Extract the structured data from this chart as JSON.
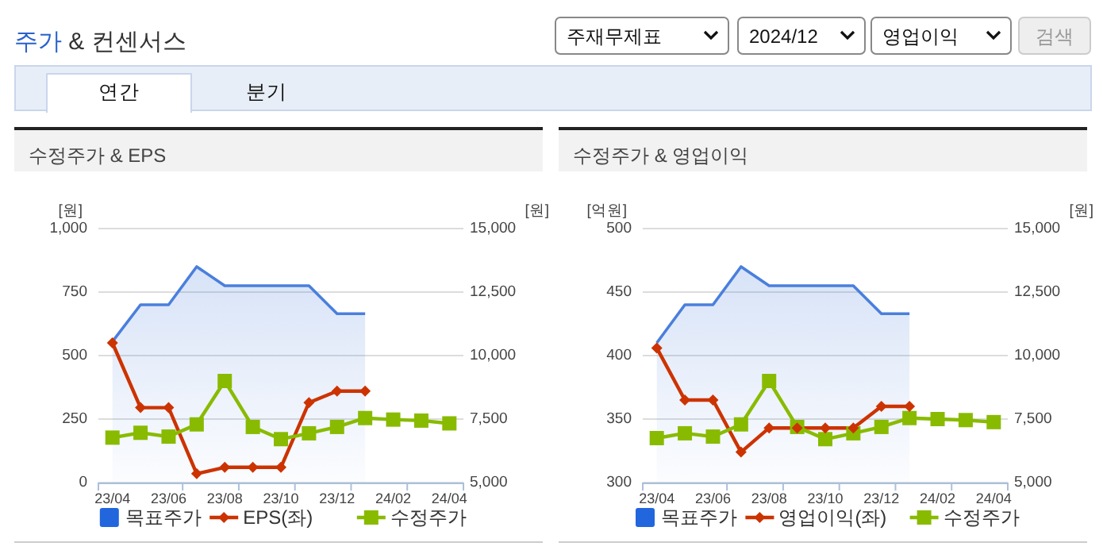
{
  "chart_data": [
    {
      "type": "other",
      "title": "주가 & 컨센서스",
      "annotations": [
        "주재무제표",
        "2024/12",
        "영업이익",
        "검색",
        "연간",
        "분기"
      ]
    },
    {
      "type": "line",
      "title": "수정주가 & EPS",
      "ylabel": "[원]",
      "y2label": "[원]",
      "legend": "bottom",
      "grid": "y",
      "categories": [
        "23/04",
        null,
        "23/06",
        null,
        "23/08",
        null,
        "23/10",
        null,
        "23/12",
        null,
        "24/02",
        null,
        "24/04"
      ],
      "ylim": [
        0,
        1000
      ],
      "yticks": [
        0,
        250,
        500,
        750,
        {
          "value": 1000,
          "label": "1,000"
        }
      ],
      "y2lim": [
        5000,
        15000
      ],
      "y2ticks": [
        {
          "value": 5000,
          "label": "5,000"
        },
        {
          "value": 7500,
          "label": "7,500"
        },
        {
          "value": 10000,
          "label": "10,000"
        },
        {
          "value": 12500,
          "label": "12,500"
        },
        {
          "value": 15000,
          "label": "15,000"
        }
      ],
      "series": [
        {
          "name": "목표주가",
          "type": "area",
          "axis": "y2",
          "color": "#4a7fdc",
          "marker": "none",
          "values": [
            10550,
            12000,
            12000,
            13500,
            12750,
            12750,
            12750,
            12750,
            11650,
            11650,
            null,
            null,
            null
          ]
        },
        {
          "name": "EPS(좌)",
          "type": "line",
          "color": "#cc3300",
          "marker": "diamond",
          "values": [
            550,
            295,
            295,
            35,
            60,
            60,
            60,
            315,
            360,
            360,
            null,
            null,
            null
          ]
        },
        {
          "name": "수정주가",
          "type": "line",
          "axis": "y2",
          "color": "#88bb00",
          "marker": "square",
          "values": [
            6770,
            6960,
            6810,
            7290,
            9000,
            7190,
            6710,
            6940,
            7190,
            7540,
            7480,
            7440,
            7330
          ]
        }
      ]
    },
    {
      "type": "line",
      "title": "수정주가 & 영업이익",
      "ylabel": "[억원]",
      "y2label": "[원]",
      "legend": "bottom",
      "grid": "y",
      "categories": [
        "23/04",
        null,
        "23/06",
        null,
        "23/08",
        null,
        "23/10",
        null,
        "23/12",
        null,
        "24/02",
        null,
        "24/04"
      ],
      "ylim": [
        300,
        500
      ],
      "yticks": [
        300,
        350,
        400,
        450,
        500
      ],
      "y2lim": [
        5000,
        15000
      ],
      "y2ticks": [
        {
          "value": 5000,
          "label": "5,000"
        },
        {
          "value": 7500,
          "label": "7,500"
        },
        {
          "value": 10000,
          "label": "10,000"
        },
        {
          "value": 12500,
          "label": "12,500"
        },
        {
          "value": 15000,
          "label": "15,000"
        }
      ],
      "series": [
        {
          "name": "목표주가",
          "type": "area",
          "axis": "y2",
          "color": "#4a7fdc",
          "marker": "none",
          "values": [
            10500,
            12000,
            12000,
            13500,
            12750,
            12750,
            12750,
            12750,
            11650,
            11650,
            null,
            null,
            null
          ]
        },
        {
          "name": "영업이익(좌)",
          "type": "line",
          "color": "#cc3300",
          "marker": "diamond",
          "values": [
            406,
            365,
            365,
            324,
            343,
            343,
            343,
            343,
            360,
            360,
            null,
            null,
            null
          ]
        },
        {
          "name": "수정주가",
          "type": "line",
          "axis": "y2",
          "color": "#88bb00",
          "marker": "square",
          "values": [
            6750,
            6940,
            6810,
            7290,
            9000,
            7190,
            6710,
            6940,
            7190,
            7540,
            7500,
            7460,
            7380
          ]
        }
      ]
    }
  ]
}
